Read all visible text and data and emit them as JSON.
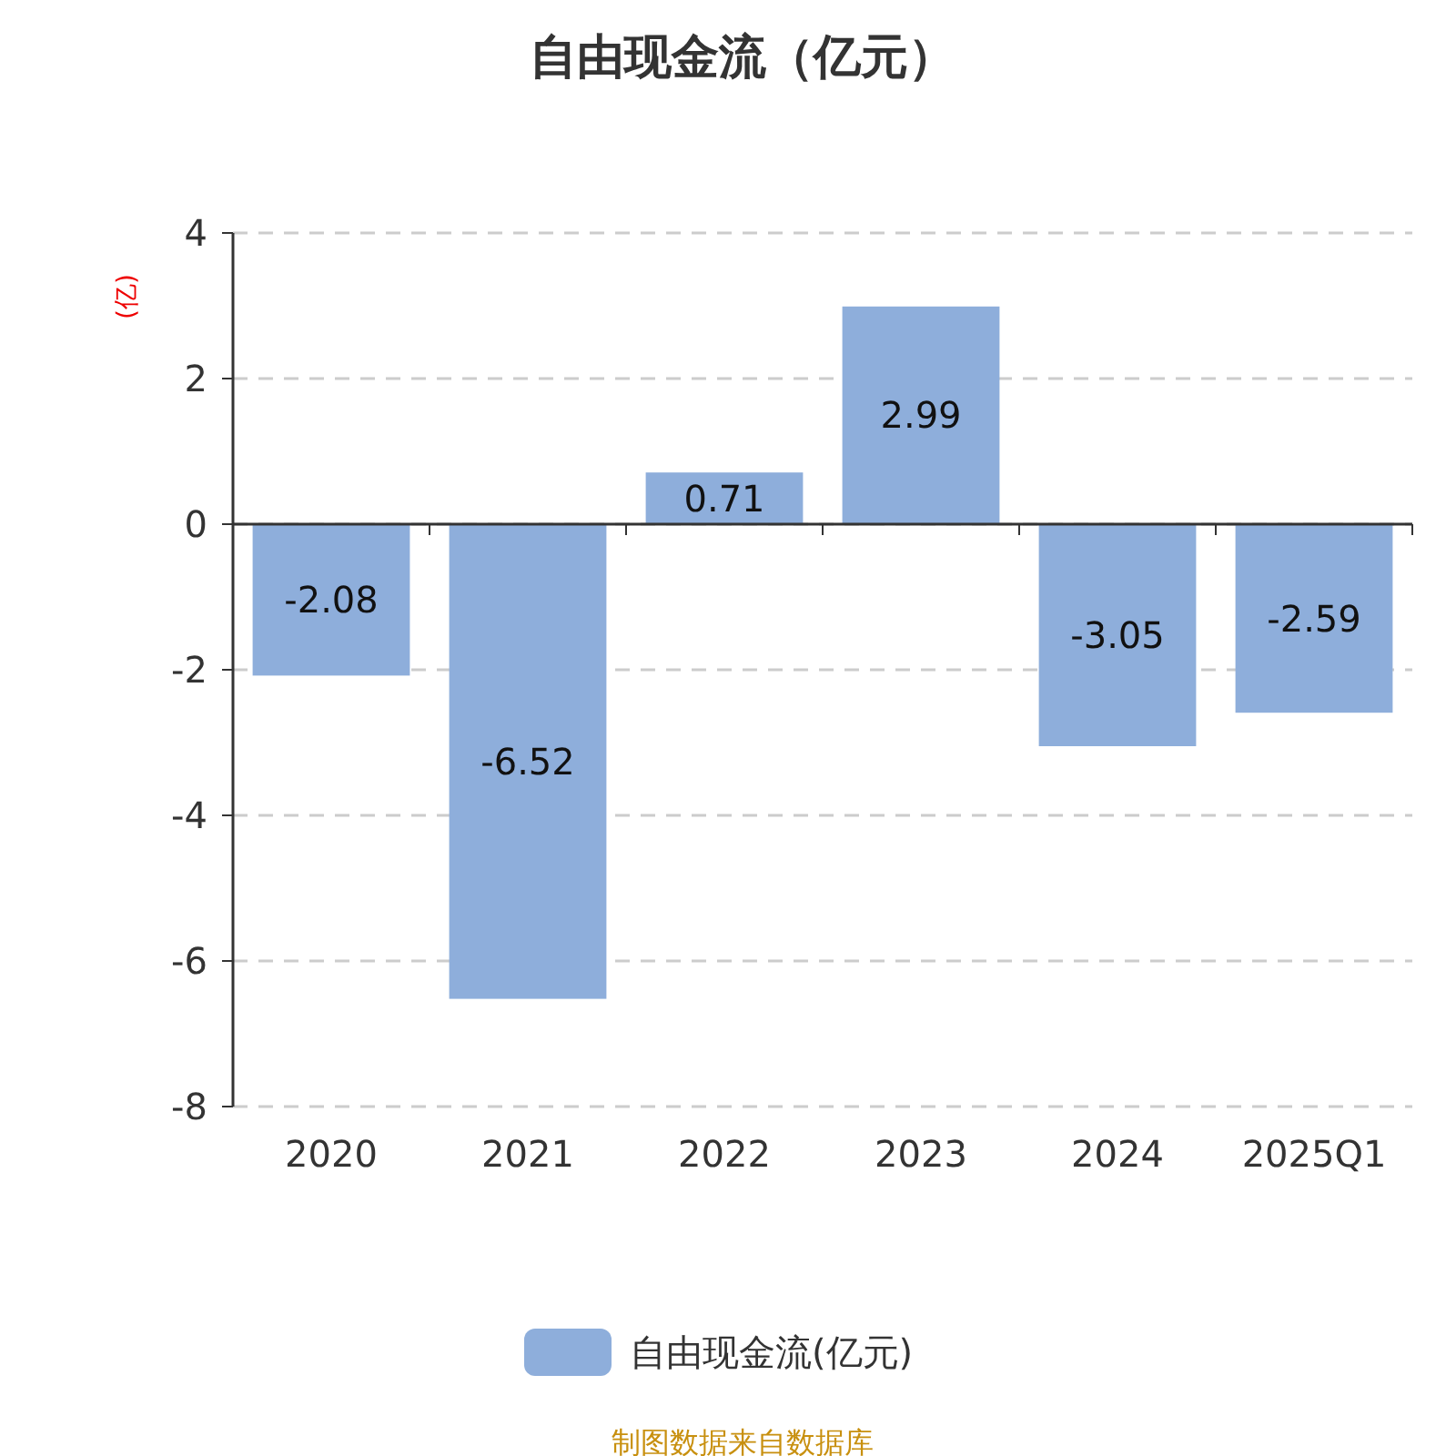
{
  "chart_data": {
    "type": "bar",
    "title": "自由现金流（亿元）",
    "ylabel": "(亿)",
    "categories": [
      "2020",
      "2021",
      "2022",
      "2023",
      "2024",
      "2025Q1"
    ],
    "series": [
      {
        "name": "自由现金流(亿元)",
        "color": "#8eaedb",
        "values": [
          -2.08,
          -6.52,
          0.71,
          2.99,
          -3.05,
          -2.59
        ]
      }
    ],
    "ylim": [
      -8,
      4
    ],
    "yticks": [
      -8,
      -6,
      -4,
      -2,
      0,
      2,
      4
    ],
    "grid": "y",
    "legend": "bottom",
    "data_labels": true,
    "annotations": [
      "制图数据来自数据库"
    ]
  }
}
